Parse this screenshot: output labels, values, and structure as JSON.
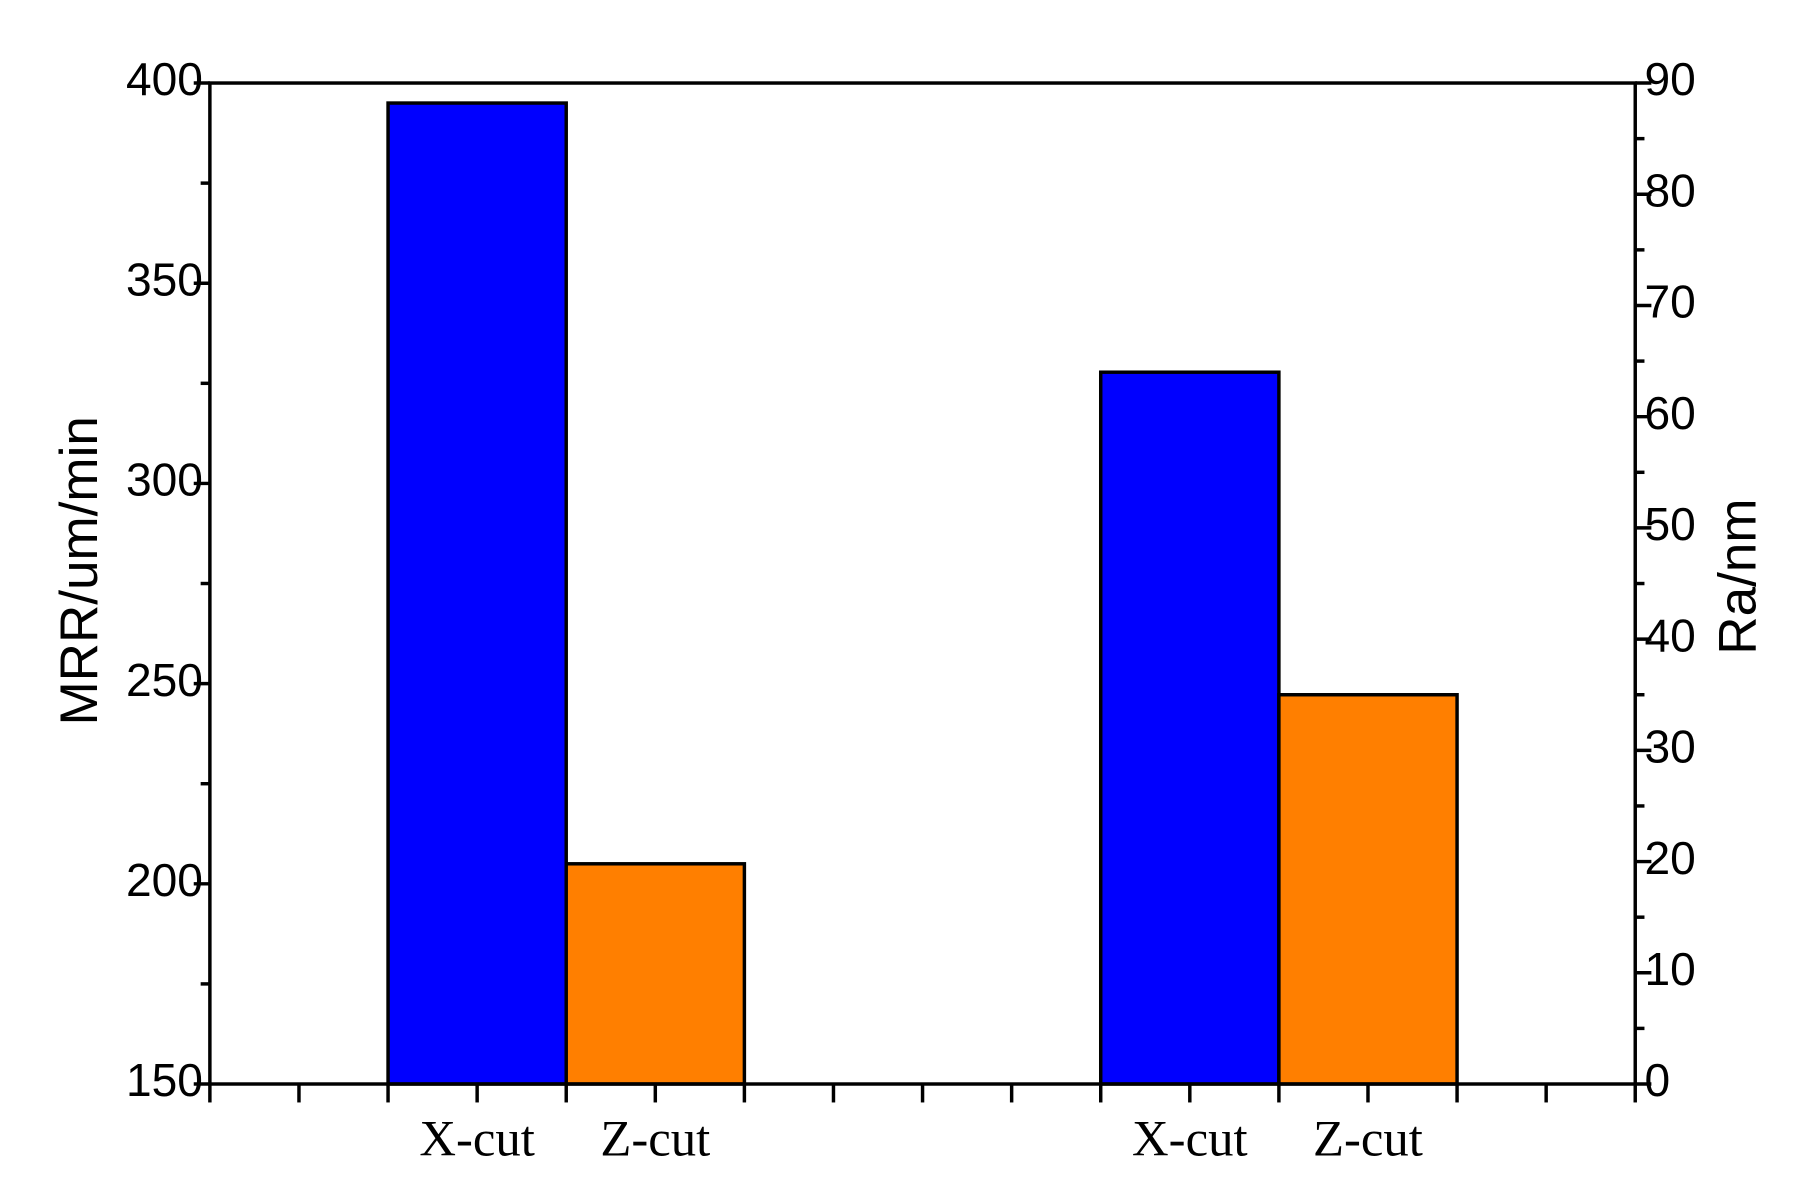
{
  "chart_data": {
    "type": "bar",
    "categories": [
      "X-cut",
      "Z-cut",
      "X-cut",
      "Z-cut"
    ],
    "colors": [
      "#0000ff",
      "#ff7f00",
      "#0000ff",
      "#ff7f00"
    ],
    "series": [
      {
        "values": [
          395,
          205,
          null,
          null
        ]
      },
      {
        "axis": "y2",
        "values": [
          null,
          null,
          64,
          35
        ]
      }
    ],
    "ylabel": "MRR/um/min",
    "y2label": "Ra/nm",
    "ylim": [
      150,
      400
    ],
    "yticks": [
      150,
      200,
      250,
      300,
      350,
      400
    ],
    "y2lim": [
      0,
      90
    ],
    "y2ticks": [
      0,
      10,
      20,
      30,
      40,
      50,
      60,
      70,
      80,
      90
    ]
  }
}
